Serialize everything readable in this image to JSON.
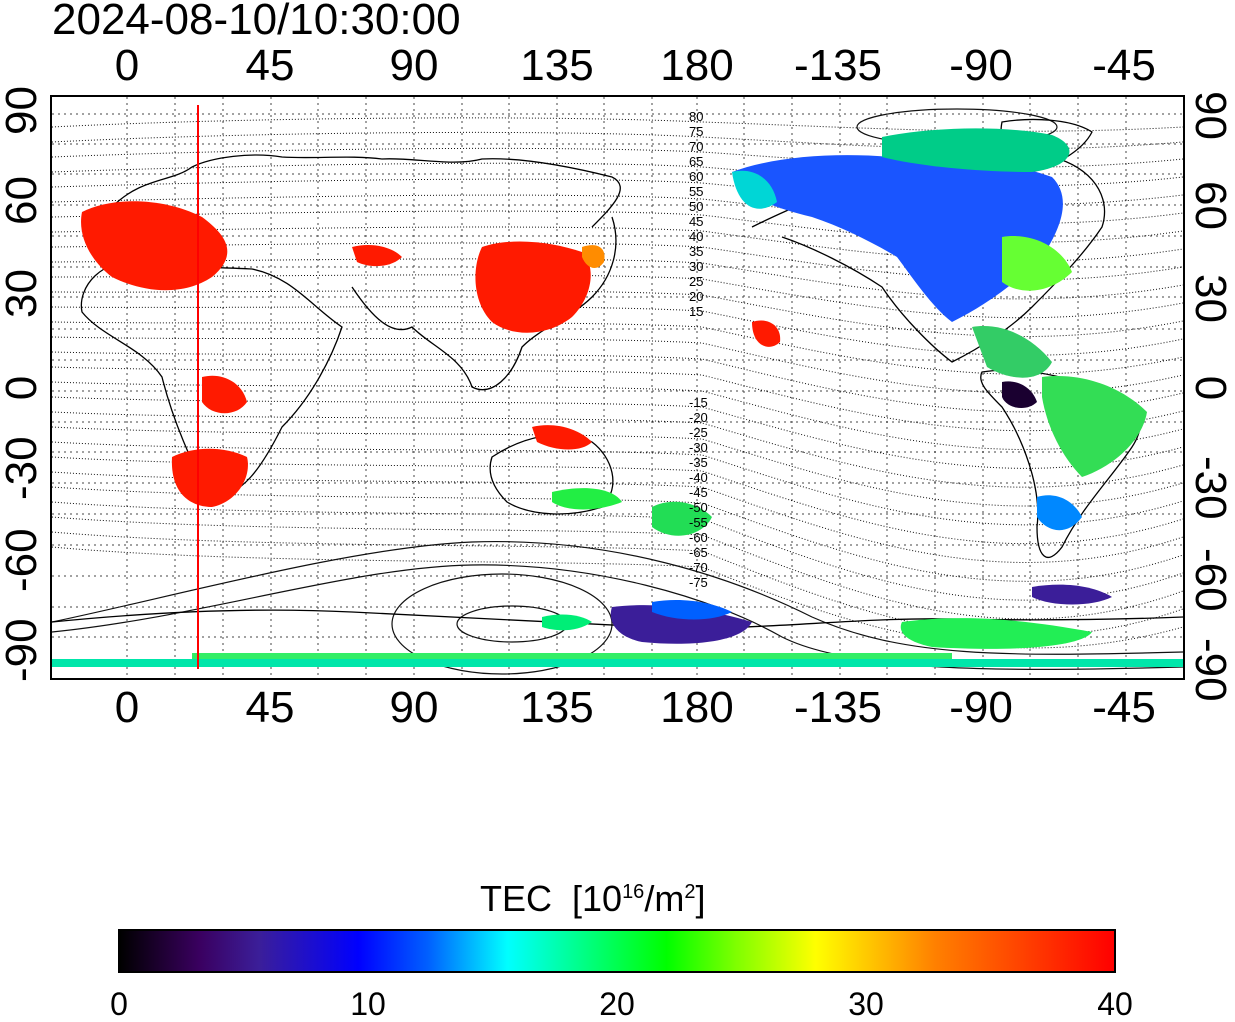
{
  "timestamp": "2024-08-10/10:30:00",
  "top_axis_ticks": [
    "0",
    "45",
    "90",
    "135",
    "180",
    "-135",
    "-90",
    "-45"
  ],
  "bottom_axis_ticks": [
    "0",
    "45",
    "90",
    "135",
    "180",
    "-135",
    "-90",
    "-45"
  ],
  "left_axis_ticks": [
    "90",
    "60",
    "30",
    "0",
    "-30",
    "-60",
    "-90"
  ],
  "right_axis_ticks": [
    "90",
    "60",
    "30",
    "0",
    "-30",
    "-60",
    "-90"
  ],
  "contour_labels": [
    "80",
    "75",
    "70",
    "65",
    "60",
    "55",
    "50",
    "45",
    "40",
    "35",
    "30",
    "25",
    "20",
    "15",
    "-15",
    "-20",
    "-25",
    "-30",
    "-35",
    "-40",
    "-45",
    "-50",
    "-55",
    "-60",
    "-65",
    "-70",
    "-75"
  ],
  "colorbar": {
    "title": "TEC",
    "unit_prefix": "[10",
    "unit_exp": "16",
    "unit_mid": "/m",
    "unit_exp2": "2",
    "unit_suffix": "]",
    "ticks": [
      "0",
      "10",
      "20",
      "30",
      "40"
    ],
    "min": 0,
    "max": 40
  },
  "colors": {
    "high_tec": "#ff0000",
    "low_tec": "#000000",
    "mid_tec": "#00ff00",
    "terminator_line": "#ff0000"
  }
}
